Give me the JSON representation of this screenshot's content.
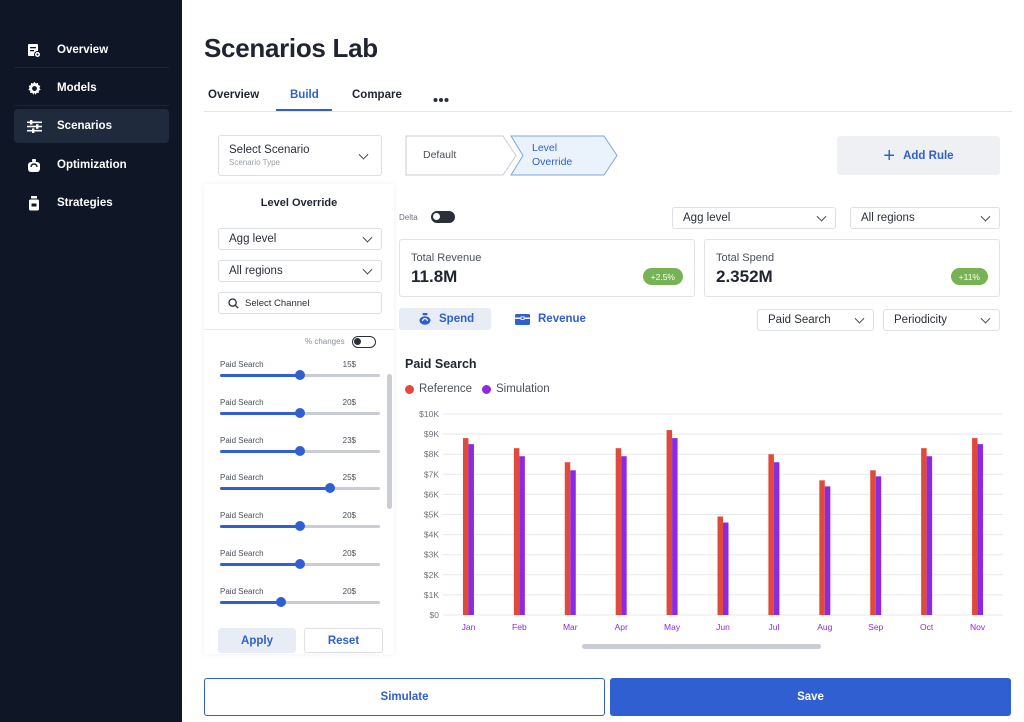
{
  "sidebar": {
    "items": [
      {
        "label": "Overview",
        "icon": "document-chart-icon",
        "active": false
      },
      {
        "label": "Models",
        "icon": "gear-icon",
        "active": false
      },
      {
        "label": "Scenarios",
        "icon": "sliders-icon",
        "active": true
      },
      {
        "label": "Optimization",
        "icon": "scale-icon",
        "active": false
      },
      {
        "label": "Strategies",
        "icon": "box-icon",
        "active": false
      }
    ]
  },
  "header": {
    "title": "Scenarios Lab",
    "tabs": [
      "Overview",
      "Build",
      "Compare"
    ],
    "active_tab": "Build",
    "more_icon": "more-horizontal-icon"
  },
  "scenario_select": {
    "label": "Select Scenario",
    "sublabel": "Scenario Type"
  },
  "breadcrumb": {
    "step1": "Default",
    "step2_line1": "Level",
    "step2_line2": "Override"
  },
  "add_rule": {
    "label": "Add Rule",
    "icon": "plus-icon"
  },
  "left_panel": {
    "title": "Level Override",
    "agg_level": "Agg level",
    "regions": "All regions",
    "search_placeholder": "Select Channel",
    "pct_changes_label": "% changes",
    "sliders": [
      {
        "label": "Paid Search",
        "value": "15$",
        "fraction": 0.5
      },
      {
        "label": "Paid Search",
        "value": "20$",
        "fraction": 0.5
      },
      {
        "label": "Paid Search",
        "value": "23$",
        "fraction": 0.5
      },
      {
        "label": "Paid Search",
        "value": "25$",
        "fraction": 0.69
      },
      {
        "label": "Paid Search",
        "value": "20$",
        "fraction": 0.5
      },
      {
        "label": "Paid Search",
        "value": "20$",
        "fraction": 0.5
      },
      {
        "label": "Paid Search",
        "value": "20$",
        "fraction": 0.38
      }
    ],
    "apply_label": "Apply",
    "reset_label": "Reset"
  },
  "filters": {
    "delta_label": "Delta",
    "agg_level": "Agg level",
    "regions": "All regions",
    "channel": "Paid Search",
    "periodicity": "Periodicity"
  },
  "kpis": [
    {
      "label": "Total Revenue",
      "value": "11.8M",
      "delta": "+2.5%"
    },
    {
      "label": "Total Spend",
      "value": "2.352M",
      "delta": "+11%"
    }
  ],
  "subtabs": [
    {
      "label": "Spend",
      "icon": "money-bag-icon",
      "active": true
    },
    {
      "label": "Revenue",
      "icon": "wallet-icon",
      "active": false
    }
  ],
  "colors": {
    "accent": "#2f5fd0",
    "reference": "#e14a3a",
    "simulation": "#8a2be2",
    "badge": "#77b255",
    "sidebar": "#0f1626"
  },
  "chart_data": {
    "type": "bar",
    "title": "Paid Search",
    "categories": [
      "Jan",
      "Feb",
      "Mar",
      "Apr",
      "May",
      "Jun",
      "Jul",
      "Aug",
      "Sep",
      "Oct",
      "Nov"
    ],
    "series": [
      {
        "name": "Reference",
        "values": [
          8800,
          8300,
          7600,
          8300,
          9200,
          4900,
          8000,
          6700,
          7200,
          8300,
          8800
        ]
      },
      {
        "name": "Simulation",
        "values": [
          8500,
          7900,
          7200,
          7900,
          8800,
          4600,
          7600,
          6400,
          6900,
          7900,
          8500
        ]
      }
    ],
    "yticks": [
      "$0",
      "$1K",
      "$2K",
      "$3K",
      "$4K",
      "$5K",
      "$6K",
      "$7K",
      "$8K",
      "$9K",
      "$10K"
    ],
    "ylim": [
      0,
      10000
    ],
    "grid": true,
    "legend": "top-left"
  },
  "footer": {
    "simulate_label": "Simulate",
    "save_label": "Save"
  }
}
